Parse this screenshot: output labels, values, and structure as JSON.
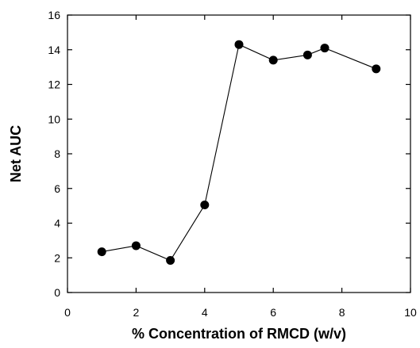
{
  "chart_data": {
    "type": "line",
    "xlabel": "% Concentration of RMCD (w/v)",
    "ylabel": "Net AUC",
    "xlim": [
      0,
      10
    ],
    "ylim": [
      0,
      16
    ],
    "xticks": [
      0,
      2,
      4,
      6,
      8,
      10
    ],
    "yticks": [
      0,
      2,
      4,
      6,
      8,
      10,
      12,
      14,
      16
    ],
    "grid": false,
    "series": [
      {
        "x": [
          1,
          2,
          3,
          4,
          5,
          6,
          7,
          7.5,
          9
        ],
        "y": [
          2.35,
          2.7,
          1.85,
          5.05,
          14.3,
          13.4,
          13.7,
          14.1,
          12.9
        ],
        "marker": "filled-circle",
        "color": "#000000"
      }
    ]
  }
}
